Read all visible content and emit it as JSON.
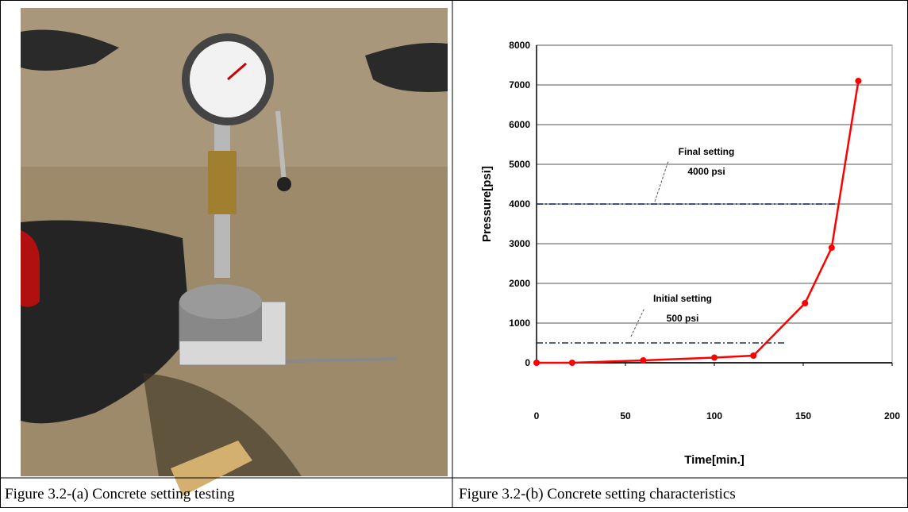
{
  "chart_data": {
    "type": "line",
    "x_label": "Time[min.]",
    "y_label": "Pressure[psi]",
    "x": [
      0,
      20,
      60,
      100,
      122,
      151,
      166,
      181
    ],
    "series": [
      {
        "color": "#ff0000",
        "values": [
          0,
          0,
          60,
          130,
          180,
          1500,
          2900,
          7100
        ]
      }
    ],
    "xlim": [
      0,
      200
    ],
    "xticks": [
      0,
      50,
      100,
      150,
      200
    ],
    "ylim": [
      0,
      8000
    ],
    "yticks": [
      0,
      1000,
      2000,
      3000,
      4000,
      5000,
      6000,
      7000,
      8000
    ],
    "grid": true,
    "reference_lines": [
      {
        "value": 4000,
        "color": "#1f2f5f",
        "label": [
          "Final setting",
          "4000 psi"
        ]
      },
      {
        "value": 500,
        "color": "#1f2f5f",
        "label": [
          "Initial setting",
          "500 psi"
        ]
      }
    ]
  },
  "captions": [
    "Figure 3.2-(a) Concrete setting testing",
    "Figure 3.2-(b) Concrete setting characteristics"
  ]
}
